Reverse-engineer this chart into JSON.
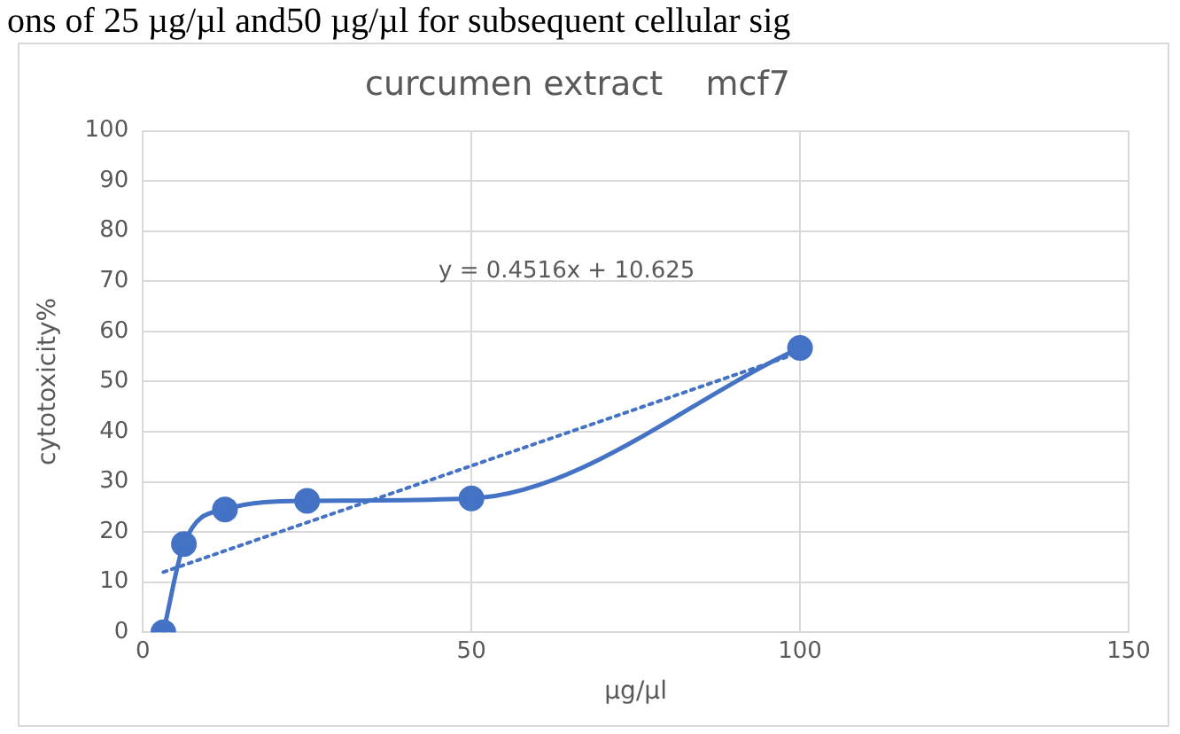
{
  "chart_data": {
    "type": "line",
    "title": "curcumen extract    mcf7",
    "xlabel": "µg/µl",
    "ylabel": "cytotoxicity%",
    "annotations": [
      "ons of 25 µg/µl and50 µg/µl for subsequent cellular sig",
      "y = 0.4516x + 10.625"
    ],
    "series": [
      {
        "type": "line",
        "color": "#4472c4",
        "x": [
          3.125,
          6.25,
          12.5,
          25,
          50,
          100
        ],
        "values": [
          0,
          17.6,
          24.5,
          26.2,
          26.7,
          56.7
        ],
        "marker": "circle",
        "line_style": "solid"
      },
      {
        "type": "line",
        "color": "#4472c4",
        "x": [
          3.125,
          100
        ],
        "values": [
          12.0,
          55.8
        ],
        "marker": "none",
        "line_style": "dotted"
      }
    ],
    "xlim": [
      0,
      150
    ],
    "xticks": [
      0,
      50,
      100,
      150
    ],
    "ylim": [
      0,
      100
    ],
    "yticks": [
      0,
      10,
      20,
      30,
      40,
      50,
      60,
      70,
      80,
      90,
      100
    ],
    "grid": true,
    "legend": false
  }
}
